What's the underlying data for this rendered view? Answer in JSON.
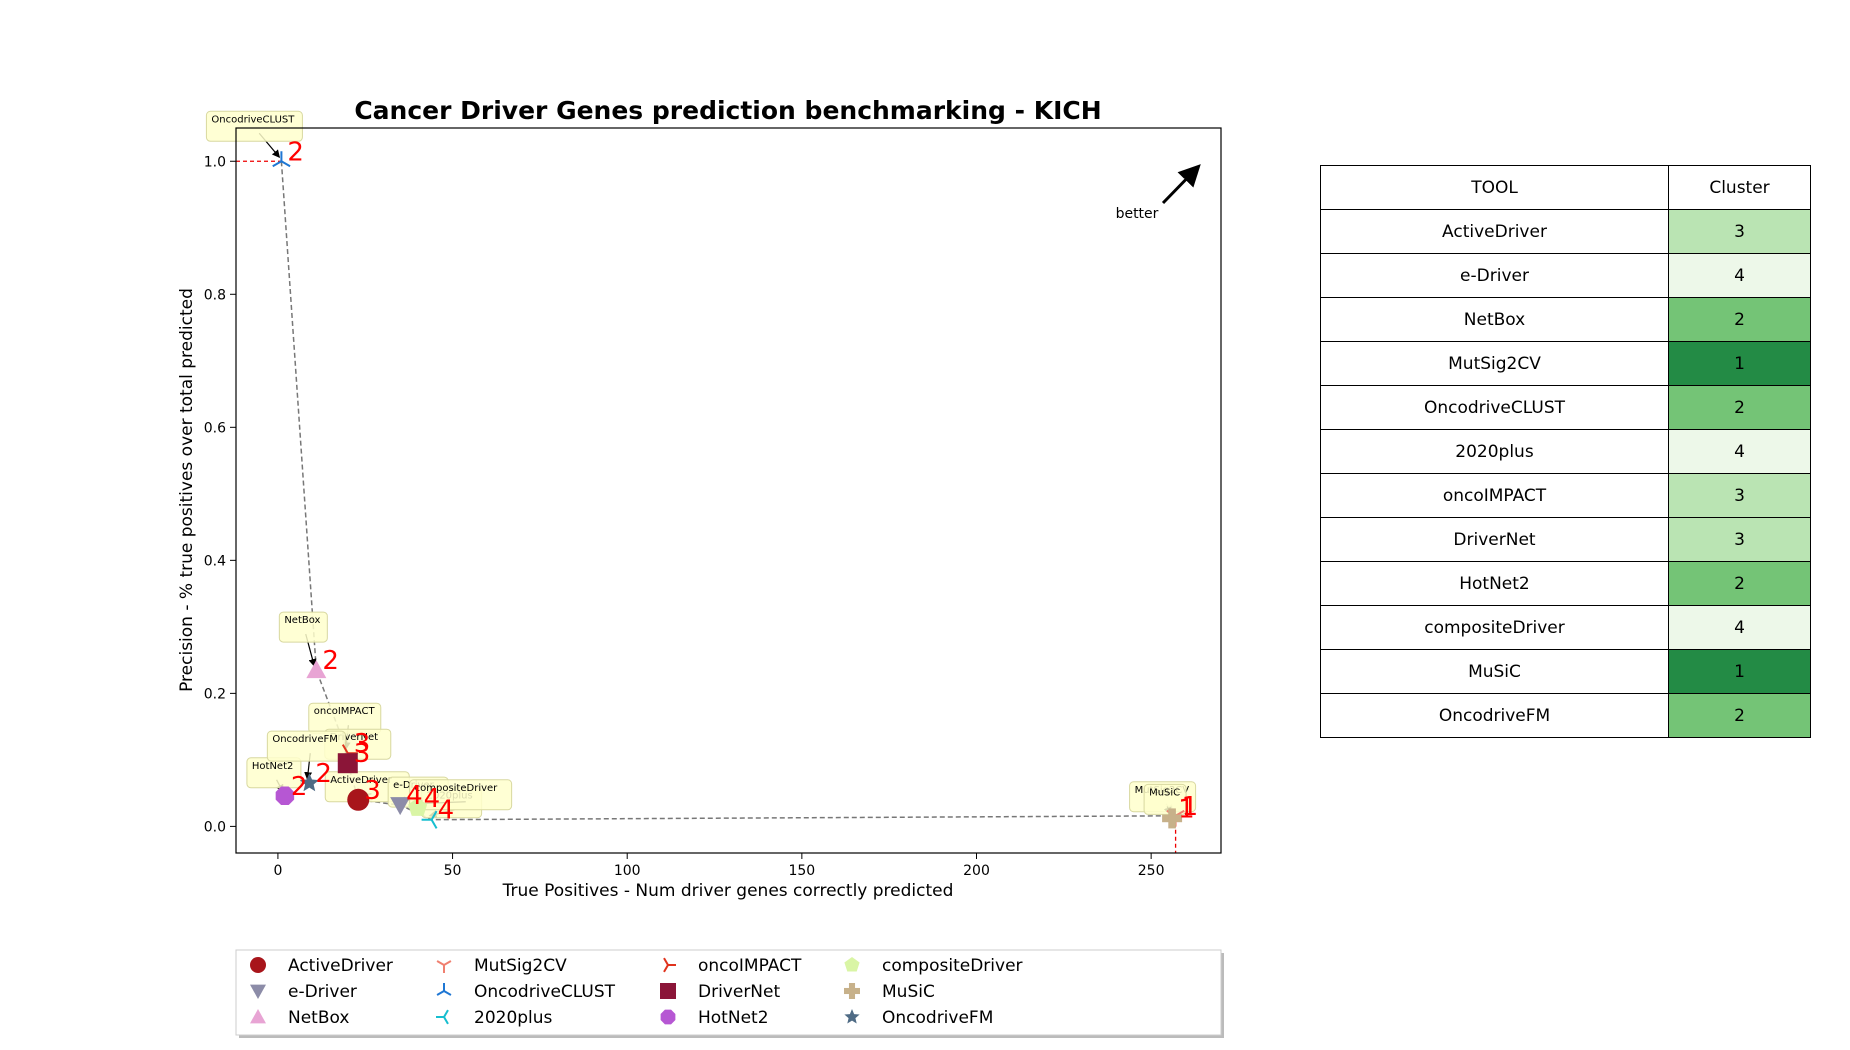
{
  "chart_data": {
    "type": "scatter",
    "title": "Cancer Driver Genes prediction benchmarking - KICH",
    "xlabel": "True Positives - Num driver genes correctly predicted",
    "ylabel": "Precision - % true positives over total predicted",
    "xlim": [
      -12,
      270
    ],
    "ylim": [
      -0.04,
      1.05
    ],
    "xticks": [
      0,
      50,
      100,
      150,
      200,
      250
    ],
    "yticks": [
      0.0,
      0.2,
      0.4,
      0.6,
      0.8,
      1.0
    ],
    "grid": false,
    "legend_position": "bottom",
    "better_label": "better",
    "series": [
      {
        "name": "ActiveDriver",
        "x": 23,
        "y": 0.04,
        "cluster": "3",
        "color": "#a8151b",
        "marker": "circle"
      },
      {
        "name": "e-Driver",
        "x": 35,
        "y": 0.032,
        "cluster": "4",
        "color": "#8c8ca8",
        "marker": "triangle-down"
      },
      {
        "name": "NetBox",
        "x": 11,
        "y": 0.235,
        "cluster": "2",
        "color": "#e8a4d4",
        "marker": "triangle-up"
      },
      {
        "name": "MutSig2CV",
        "x": 257,
        "y": 0.016,
        "cluster": "1",
        "color": "#f08070",
        "marker": "tri-down"
      },
      {
        "name": "OncodriveCLUST",
        "x": 1,
        "y": 1.0,
        "cluster": "2",
        "color": "#1f77d4",
        "marker": "tri-up"
      },
      {
        "name": "2020plus",
        "x": 44,
        "y": 0.01,
        "cluster": "4",
        "color": "#17becf",
        "marker": "tri-left"
      },
      {
        "name": "oncoIMPACT",
        "x": 20,
        "y": 0.11,
        "cluster": "3",
        "color": "#e0331d",
        "marker": "tri-right"
      },
      {
        "name": "DriverNet",
        "x": 20,
        "y": 0.095,
        "cluster": "3",
        "color": "#8b1538",
        "marker": "square"
      },
      {
        "name": "HotNet2",
        "x": 2,
        "y": 0.046,
        "cluster": "2",
        "color": "#b657d3",
        "marker": "octagon"
      },
      {
        "name": "compositeDriver",
        "x": 40,
        "y": 0.028,
        "cluster": "4",
        "color": "#d9f5a5",
        "marker": "pentagon"
      },
      {
        "name": "MuSiC",
        "x": 256,
        "y": 0.012,
        "cluster": "1",
        "color": "#c7b18a",
        "marker": "plus"
      },
      {
        "name": "OncodriveFM",
        "x": 9,
        "y": 0.065,
        "cluster": "2",
        "color": "#4f6b85",
        "marker": "star"
      }
    ]
  },
  "table": {
    "headers": [
      "TOOL",
      "Cluster"
    ],
    "rows": [
      {
        "tool": "ActiveDriver",
        "cluster": "3"
      },
      {
        "tool": "e-Driver",
        "cluster": "4"
      },
      {
        "tool": "NetBox",
        "cluster": "2"
      },
      {
        "tool": "MutSig2CV",
        "cluster": "1"
      },
      {
        "tool": "OncodriveCLUST",
        "cluster": "2"
      },
      {
        "tool": "2020plus",
        "cluster": "4"
      },
      {
        "tool": "oncoIMPACT",
        "cluster": "3"
      },
      {
        "tool": "DriverNet",
        "cluster": "3"
      },
      {
        "tool": "HotNet2",
        "cluster": "2"
      },
      {
        "tool": "compositeDriver",
        "cluster": "4"
      },
      {
        "tool": "MuSiC",
        "cluster": "1"
      },
      {
        "tool": "OncodriveFM",
        "cluster": "2"
      }
    ],
    "cluster_colors": {
      "1": "#238b45",
      "2": "#74c476",
      "3": "#bae4b3",
      "4": "#edf8e9"
    }
  }
}
